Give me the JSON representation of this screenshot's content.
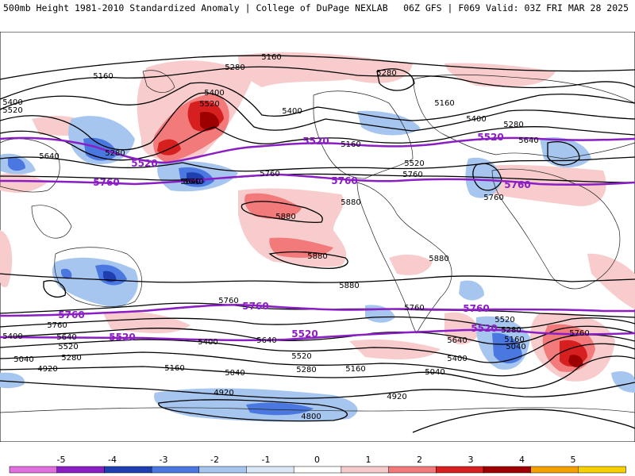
{
  "header": {
    "title": "500mb Height 1981-2010 Standardized Anomaly | College of DuPage NEXLAB",
    "run": "06Z GFS | F069 Valid: 03Z FRI MAR 28 2025"
  },
  "colorbar": {
    "ticks": [
      "-5",
      "-4",
      "-3",
      "-2",
      "-1",
      "0",
      "1",
      "2",
      "3",
      "4",
      "5"
    ],
    "colors": [
      "#e070e0",
      "#8a1ec4",
      "#1f3fb0",
      "#4a78e0",
      "#a6c6f0",
      "#dbe8f8",
      "#ffffff",
      "#f8cccc",
      "#f27a7a",
      "#d62020",
      "#9c0000",
      "#f5a000",
      "#f8d000"
    ]
  },
  "map": {
    "height_labels": {
      "black": [
        "5160",
        "5280",
        "5400",
        "5520",
        "5400",
        "5520",
        "5640",
        "5280",
        "5400",
        "5280",
        "5160",
        "5160",
        "5160",
        "5400",
        "5280",
        "5640",
        "5520",
        "5760",
        "5640",
        "5760",
        "5880",
        "5880",
        "5880",
        "5880",
        "5880",
        "5760",
        "5760",
        "5760",
        "5400",
        "5640",
        "5520",
        "5280",
        "5040",
        "4920",
        "5400",
        "5640",
        "5520",
        "5280",
        "5160",
        "5040",
        "4920",
        "4920",
        "4800",
        "5040",
        "5160",
        "5400",
        "5640",
        "5520",
        "5280",
        "5160",
        "5040",
        "5760",
        "5760",
        "5640"
      ],
      "purple": [
        "5520",
        "5520",
        "5520",
        "5760",
        "5760",
        "5760",
        "5760",
        "5760",
        "5760",
        "5520",
        "5520",
        "5520"
      ]
    }
  }
}
